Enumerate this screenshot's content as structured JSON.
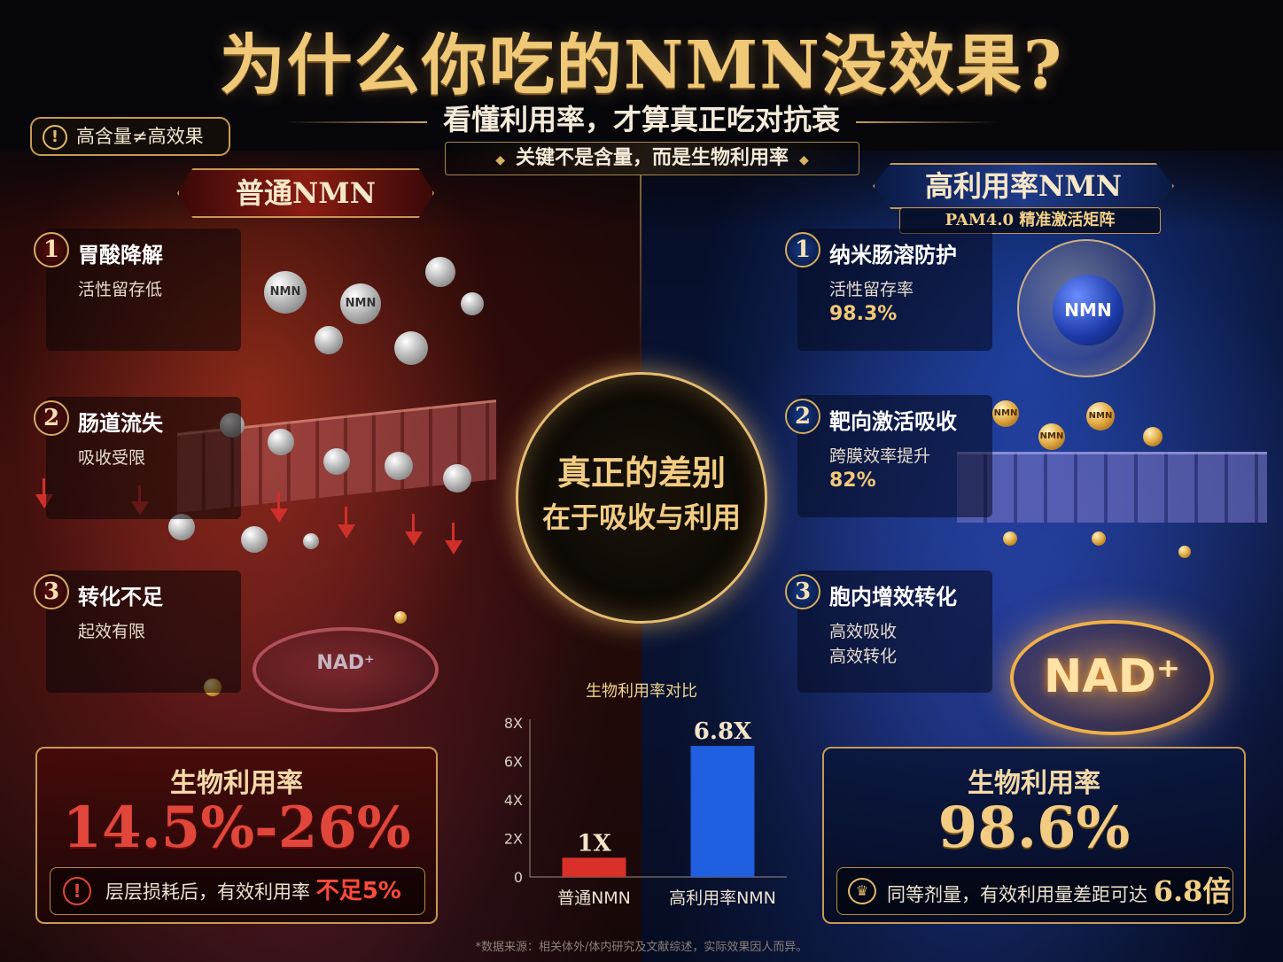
{
  "header": {
    "title": "为什么你吃的NMN没效果?",
    "subtitle": "看懂利用率，才算真正吃对抗衰",
    "key_message": "关键不是含量，而是生物利用率",
    "warning_pill": "高含量≠高效果"
  },
  "left": {
    "banner": "普通NMN",
    "steps": [
      {
        "num": "1",
        "title": "胃酸降解",
        "desc": "活性留存低"
      },
      {
        "num": "2",
        "title": "肠道流失",
        "desc": "吸收受限"
      },
      {
        "num": "3",
        "title": "转化不足",
        "desc": "起效有限"
      }
    ],
    "illustration_labels": {
      "orb": "NMN",
      "nad": "NAD⁺"
    },
    "card": {
      "label": "生物利用率",
      "value": "14.5%-26%",
      "note_prefix": "层层损耗后，有效利用率",
      "note_highlight": "不足5%"
    }
  },
  "right": {
    "banner": "高利用率NMN",
    "banner_sub": "PAM4.0 精准激活矩阵",
    "steps": [
      {
        "num": "1",
        "title": "纳米肠溶防护",
        "desc": "活性留存率",
        "value": "98.3%"
      },
      {
        "num": "2",
        "title": "靶向激活吸收",
        "desc": "跨膜效率提升",
        "value": "82%"
      },
      {
        "num": "3",
        "title": "胞内增效转化",
        "desc": "高效吸收",
        "desc2": "高效转化"
      }
    ],
    "illustration_labels": {
      "orb": "NMN",
      "nad": "NAD⁺"
    },
    "card": {
      "label": "生物利用率",
      "value": "98.6%",
      "note_prefix": "同等剂量，有效利用量差距可达",
      "note_highlight": "6.8倍"
    }
  },
  "center": {
    "line1": "真正的差别",
    "line2": "在于吸收与利用"
  },
  "chart_data": {
    "type": "bar",
    "title": "生物利用率对比",
    "categories": [
      "普通NMN",
      "高利用率NMN"
    ],
    "values": [
      1,
      6.8
    ],
    "data_labels": [
      "1X",
      "6.8X"
    ],
    "y_ticks": [
      "0",
      "2X",
      "4X",
      "6X",
      "8X"
    ],
    "ylim": [
      0,
      8
    ],
    "colors": [
      "#d9302a",
      "#1f5fe0"
    ]
  },
  "footnote": "*数据来源：相关体外/体内研究及文献综述，实际效果因人而异。"
}
